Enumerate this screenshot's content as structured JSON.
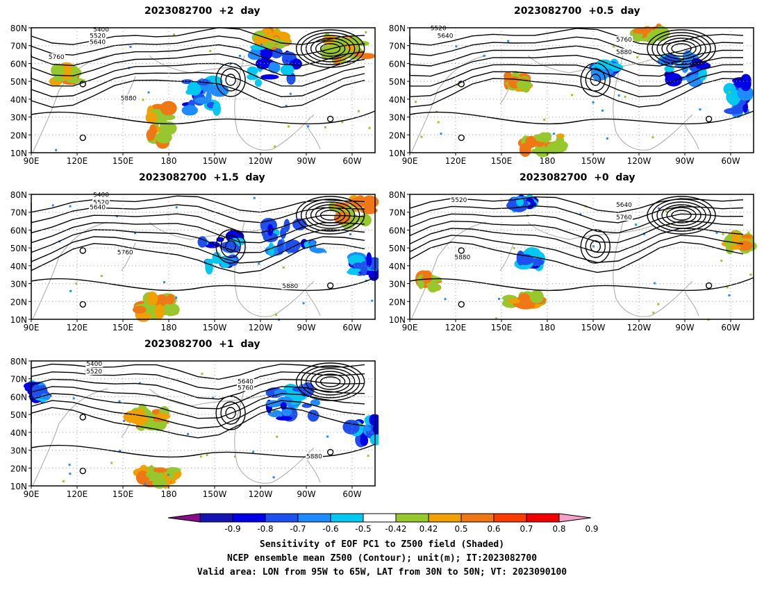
{
  "panels": [
    {
      "id": "p1",
      "title": "2023082700  +2  day",
      "contours": [
        "5400",
        "5520",
        "5640",
        "5760",
        "5880"
      ]
    },
    {
      "id": "p2",
      "title": "2023082700  +0.5  day",
      "contours": [
        "5520",
        "5640",
        "5760",
        "5880"
      ]
    },
    {
      "id": "p3",
      "title": "2023082700  +1.5  day",
      "contours": [
        "5400",
        "5520",
        "5640",
        "5760",
        "5880"
      ]
    },
    {
      "id": "p4",
      "title": "2023082700  +0  day",
      "contours": [
        "5520",
        "5640",
        "5760",
        "5880"
      ]
    },
    {
      "id": "p5",
      "title": "2023082700  +1  day",
      "contours": [
        "5400",
        "5520",
        "5640",
        "5760",
        "5880"
      ]
    }
  ],
  "axes": {
    "lat_labels": [
      "80N",
      "70N",
      "60N",
      "50N",
      "40N",
      "30N",
      "20N",
      "10N"
    ],
    "lon_labels": [
      "90E",
      "120E",
      "150E",
      "180",
      "150W",
      "120W",
      "90W",
      "60W"
    ]
  },
  "legend": {
    "ticks": [
      "-0.9",
      "-0.8",
      "-0.7",
      "-0.6",
      "-0.5",
      "-0.42",
      "0.42",
      "0.5",
      "0.6",
      "0.7",
      "0.8",
      "0.9"
    ],
    "colors": [
      "#8b0a8b",
      "#1414b4",
      "#0000e6",
      "#1e50f0",
      "#1e8cff",
      "#00c8f0",
      "#ffffff",
      "#96c82d",
      "#f0a000",
      "#f07814",
      "#fa3c00",
      "#f00000",
      "#f5a0c8"
    ]
  },
  "caption": {
    "line1": "Sensitivity of EOF PC1 to Z500 field (Shaded)",
    "line2": "NCEP ensemble mean Z500 (Contour); unit(m); IT:2023082700",
    "line3": "Valid area: LON from 95W to 65W, LAT from 30N to 50N; VT: 2023090100"
  }
}
